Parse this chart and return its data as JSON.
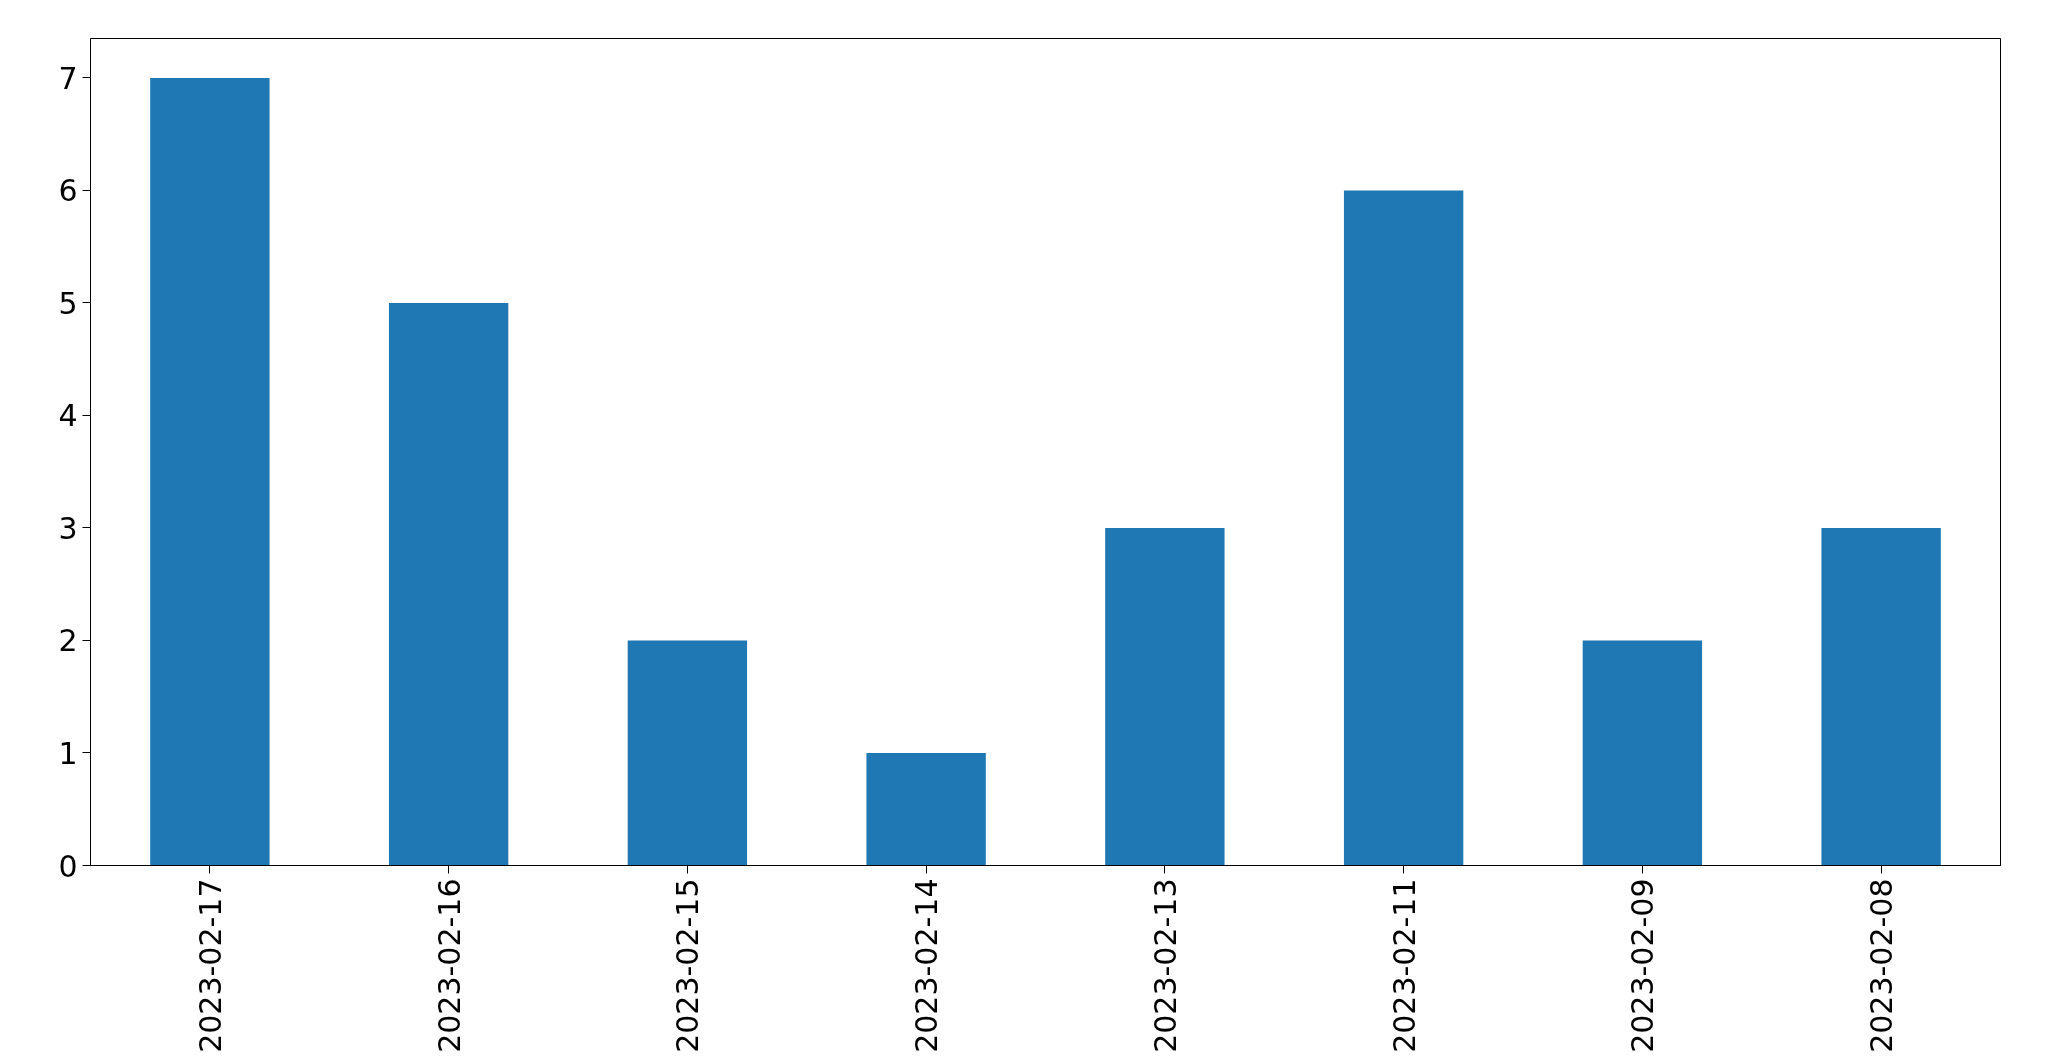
{
  "chart_data": {
    "type": "bar",
    "categories": [
      "2023-02-17",
      "2023-02-16",
      "2023-02-15",
      "2023-02-14",
      "2023-02-13",
      "2023-02-11",
      "2023-02-09",
      "2023-02-08"
    ],
    "values": [
      7,
      5,
      2,
      1,
      3,
      6,
      2,
      3
    ],
    "color": "#1f77b4",
    "ylim": [
      0,
      7.35
    ],
    "yticks": [
      0,
      1,
      2,
      3,
      4,
      5,
      6,
      7
    ],
    "grid": false
  }
}
